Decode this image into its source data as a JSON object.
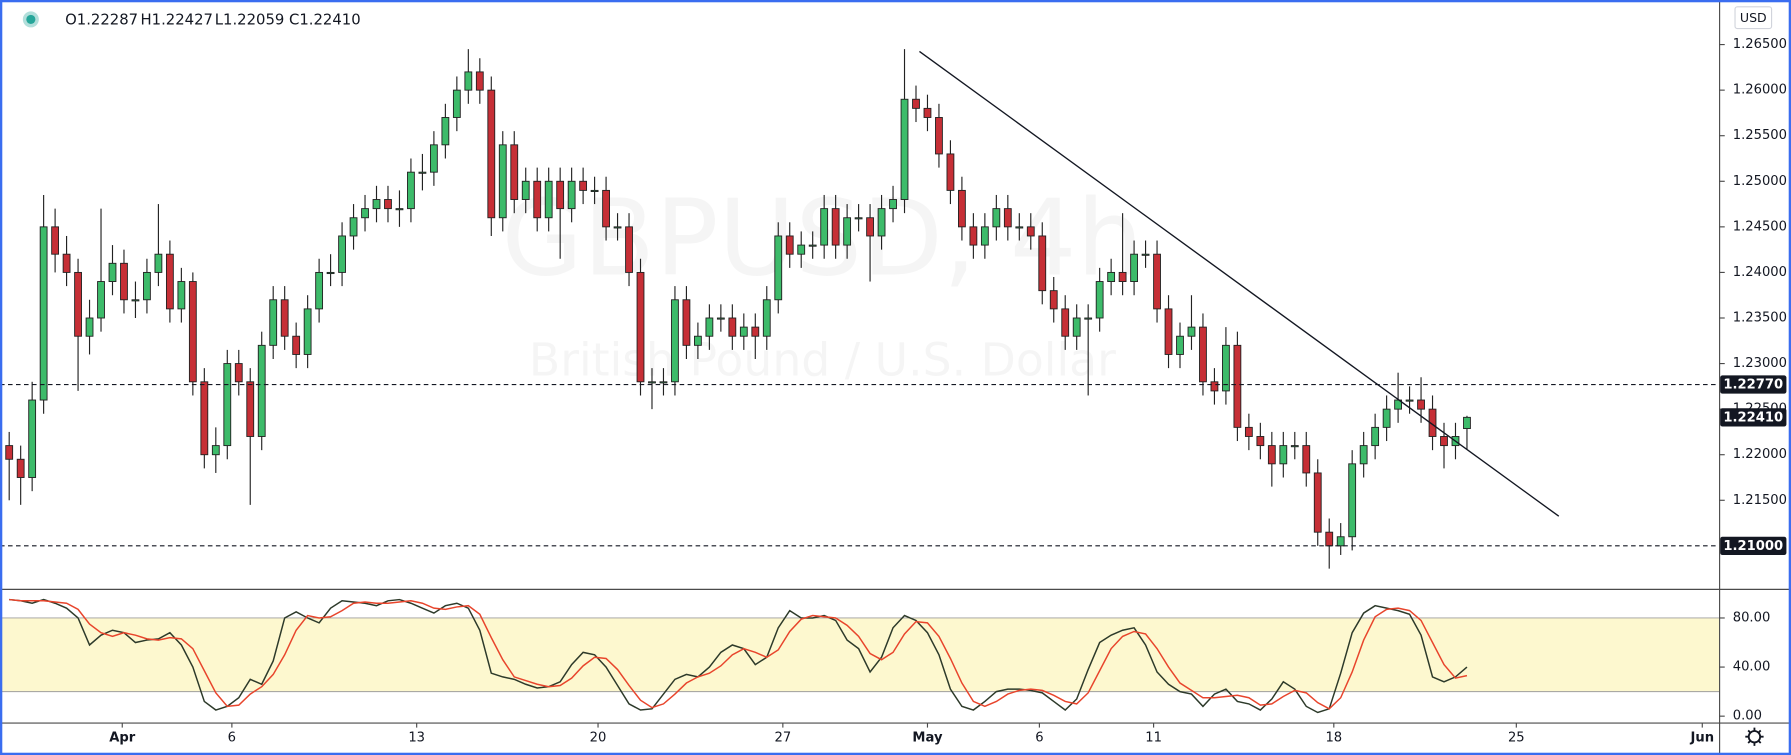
{
  "chart_data": [
    {
      "type": "candlestick",
      "header": [
        "O1.22287",
        "H1.22427",
        "L1.22059",
        "C1.22410"
      ],
      "currency": "USD",
      "watermark": [
        "GBPUSD, 4h",
        "British Pound / U.S. Dollar"
      ],
      "up_color": "#3dbb6a",
      "down_color": "#c62f36",
      "open": [
        1.221,
        1.2195,
        1.2175,
        1.226,
        1.245,
        1.242,
        1.24,
        1.233,
        1.235,
        1.239,
        1.241,
        1.237,
        1.237,
        1.24,
        1.242,
        1.236,
        1.239,
        1.228,
        1.22,
        1.221,
        1.23,
        1.228,
        1.222,
        1.232,
        1.237,
        1.233,
        1.231,
        1.236,
        1.24,
        1.24,
        1.244,
        1.246,
        1.247,
        1.248,
        1.247,
        1.247,
        1.251,
        1.251,
        1.254,
        1.257,
        1.26,
        1.262,
        1.26,
        1.246,
        1.254,
        1.248,
        1.25,
        1.246,
        1.25,
        1.247,
        1.25,
        1.249,
        1.249,
        1.245,
        1.245,
        1.24,
        1.228,
        1.228,
        1.228,
        1.237,
        1.232,
        1.233,
        1.235,
        1.235,
        1.233,
        1.234,
        1.233,
        1.237,
        1.244,
        1.242,
        1.243,
        1.243,
        1.247,
        1.243,
        1.246,
        1.246,
        1.244,
        1.247,
        1.248,
        1.259,
        1.258,
        1.257,
        1.253,
        1.249,
        1.245,
        1.243,
        1.245,
        1.247,
        1.245,
        1.245,
        1.244,
        1.238,
        1.236,
        1.233,
        1.235,
        1.235,
        1.239,
        1.24,
        1.239,
        1.242,
        1.242,
        1.236,
        1.231,
        1.233,
        1.234,
        1.228,
        1.227,
        1.232,
        1.223,
        1.222,
        1.221,
        1.219,
        1.221,
        1.221,
        1.218,
        1.2115,
        1.21,
        1.211,
        1.219,
        1.221,
        1.223,
        1.225,
        1.226,
        1.226,
        1.225,
        1.222,
        1.221,
        1.22287
      ],
      "high": [
        1.2225,
        1.221,
        1.228,
        1.2485,
        1.247,
        1.244,
        1.2415,
        1.237,
        1.247,
        1.243,
        1.2425,
        1.239,
        1.2415,
        1.2475,
        1.2435,
        1.2405,
        1.24,
        1.2295,
        1.223,
        1.2315,
        1.2315,
        1.2295,
        1.2335,
        1.2385,
        1.2385,
        1.2345,
        1.2375,
        1.2415,
        1.242,
        1.2455,
        1.2475,
        1.2485,
        1.2495,
        1.2495,
        1.249,
        1.2525,
        1.253,
        1.2555,
        1.2585,
        1.2615,
        1.2645,
        1.2635,
        1.2615,
        1.2555,
        1.2555,
        1.2515,
        1.2515,
        1.2515,
        1.2515,
        1.2515,
        1.2515,
        1.2505,
        1.2505,
        1.2465,
        1.2465,
        1.2415,
        1.2295,
        1.2295,
        1.2385,
        1.2385,
        1.2345,
        1.2365,
        1.2365,
        1.2365,
        1.2355,
        1.2355,
        1.2385,
        1.2455,
        1.2455,
        1.2445,
        1.2445,
        1.2485,
        1.2485,
        1.2475,
        1.2475,
        1.2475,
        1.2485,
        1.2495,
        1.2645,
        1.2605,
        1.2595,
        1.2585,
        1.2545,
        1.2505,
        1.2465,
        1.2465,
        1.2485,
        1.2485,
        1.2465,
        1.2465,
        1.2455,
        1.2395,
        1.2375,
        1.2365,
        1.2365,
        1.2405,
        1.2415,
        1.2465,
        1.2435,
        1.2435,
        1.2435,
        1.2375,
        1.2345,
        1.2375,
        1.2355,
        1.2295,
        1.234,
        1.2335,
        1.2245,
        1.2235,
        1.2225,
        1.2225,
        1.2225,
        1.2225,
        1.2195,
        1.213,
        1.2125,
        1.2205,
        1.2225,
        1.2245,
        1.2265,
        1.229,
        1.2275,
        1.2285,
        1.2265,
        1.2235,
        1.2235,
        1.22427
      ],
      "low": [
        1.215,
        1.2145,
        1.216,
        1.2245,
        1.24,
        1.2385,
        1.227,
        1.231,
        1.2335,
        1.2375,
        1.2355,
        1.235,
        1.2355,
        1.2385,
        1.2345,
        1.2345,
        1.2265,
        1.2185,
        1.218,
        1.2195,
        1.2265,
        1.2145,
        1.2205,
        1.2305,
        1.2315,
        1.2295,
        1.2295,
        1.2345,
        1.2385,
        1.2385,
        1.2425,
        1.2445,
        1.2455,
        1.2455,
        1.245,
        1.2455,
        1.249,
        1.2495,
        1.2525,
        1.2555,
        1.2585,
        1.2585,
        1.244,
        1.2445,
        1.2465,
        1.2465,
        1.2445,
        1.2445,
        1.2415,
        1.2455,
        1.2475,
        1.2475,
        1.2435,
        1.2435,
        1.2385,
        1.2265,
        1.225,
        1.2265,
        1.2265,
        1.2305,
        1.2305,
        1.2315,
        1.2335,
        1.2315,
        1.2315,
        1.2305,
        1.2315,
        1.2355,
        1.2405,
        1.2405,
        1.2415,
        1.2415,
        1.2415,
        1.2415,
        1.2445,
        1.239,
        1.2425,
        1.2455,
        1.2465,
        1.2565,
        1.2555,
        1.2515,
        1.2475,
        1.2435,
        1.2415,
        1.2415,
        1.2435,
        1.2435,
        1.2435,
        1.2425,
        1.2365,
        1.2345,
        1.2315,
        1.2315,
        1.2265,
        1.2335,
        1.2375,
        1.2375,
        1.2375,
        1.2405,
        1.2345,
        1.2295,
        1.2295,
        1.2315,
        1.2265,
        1.2255,
        1.2255,
        1.2215,
        1.2205,
        1.2195,
        1.2165,
        1.2175,
        1.2195,
        1.2165,
        1.21,
        1.2075,
        1.209,
        1.2095,
        1.2175,
        1.2195,
        1.2215,
        1.2235,
        1.2245,
        1.2235,
        1.2205,
        1.2185,
        1.2195,
        1.22059
      ],
      "close": [
        1.2195,
        1.2175,
        1.226,
        1.245,
        1.242,
        1.24,
        1.233,
        1.235,
        1.239,
        1.241,
        1.237,
        1.237,
        1.24,
        1.242,
        1.236,
        1.239,
        1.228,
        1.22,
        1.221,
        1.23,
        1.228,
        1.222,
        1.232,
        1.237,
        1.233,
        1.231,
        1.236,
        1.24,
        1.24,
        1.244,
        1.246,
        1.247,
        1.248,
        1.247,
        1.247,
        1.251,
        1.251,
        1.254,
        1.257,
        1.26,
        1.262,
        1.26,
        1.246,
        1.254,
        1.248,
        1.25,
        1.246,
        1.25,
        1.247,
        1.25,
        1.249,
        1.249,
        1.245,
        1.245,
        1.24,
        1.228,
        1.228,
        1.228,
        1.237,
        1.232,
        1.233,
        1.235,
        1.235,
        1.233,
        1.234,
        1.233,
        1.237,
        1.244,
        1.242,
        1.243,
        1.243,
        1.247,
        1.243,
        1.246,
        1.246,
        1.244,
        1.247,
        1.248,
        1.259,
        1.258,
        1.257,
        1.253,
        1.249,
        1.245,
        1.243,
        1.245,
        1.247,
        1.245,
        1.245,
        1.244,
        1.238,
        1.236,
        1.233,
        1.235,
        1.235,
        1.239,
        1.24,
        1.239,
        1.242,
        1.242,
        1.236,
        1.231,
        1.233,
        1.234,
        1.228,
        1.227,
        1.232,
        1.223,
        1.222,
        1.221,
        1.219,
        1.221,
        1.221,
        1.218,
        1.2115,
        1.21,
        1.211,
        1.219,
        1.221,
        1.223,
        1.225,
        1.226,
        1.226,
        1.225,
        1.222,
        1.221,
        1.222,
        1.2241
      ],
      "xlim": [
        -0.8,
        148.96
      ],
      "xticks": [
        {
          "value": 9.85,
          "label": "Apr"
        },
        {
          "value": 19.4,
          "label": "6"
        },
        {
          "value": 35.5,
          "label": "13"
        },
        {
          "value": 51.3,
          "label": "20"
        },
        {
          "value": 67.4,
          "label": "27"
        },
        {
          "value": 80.0,
          "label": "May"
        },
        {
          "value": 89.75,
          "label": "6"
        },
        {
          "value": 99.7,
          "label": "11"
        },
        {
          "value": 115.4,
          "label": "18"
        },
        {
          "value": 131.3,
          "label": "25"
        },
        {
          "value": 147.5,
          "label": "Jun"
        }
      ],
      "ylim": [
        1.20535,
        1.26989
      ],
      "yticks": [
        {
          "value": 1.215,
          "label": "1.21500"
        },
        {
          "value": 1.22,
          "label": "1.22000"
        },
        {
          "value": 1.225,
          "label": "1.22500"
        },
        {
          "value": 1.23,
          "label": "1.23000"
        },
        {
          "value": 1.235,
          "label": "1.23500"
        },
        {
          "value": 1.24,
          "label": "1.24000"
        },
        {
          "value": 1.245,
          "label": "1.24500"
        },
        {
          "value": 1.25,
          "label": "1.25000"
        },
        {
          "value": 1.255,
          "label": "1.25500"
        },
        {
          "value": 1.26,
          "label": "1.26000"
        },
        {
          "value": 1.265,
          "label": "1.26500"
        }
      ],
      "hlines": [
        {
          "value": 1.2277,
          "label": "1.22770"
        },
        {
          "value": 1.21,
          "label": "1.21000"
        }
      ],
      "last_price": {
        "value": 1.2241,
        "label": "1.22410"
      },
      "trendline": {
        "x": [
          79.3,
          135.0
        ],
        "y": [
          1.26425,
          1.21325
        ]
      }
    },
    {
      "type": "line",
      "ylim": [
        -4.65,
        103.3
      ],
      "yticks": [
        {
          "value": 0,
          "label": "0.00"
        },
        {
          "value": 40,
          "label": "40.00"
        },
        {
          "value": 80,
          "label": "80.00"
        }
      ],
      "band": [
        20,
        80
      ],
      "band_color": "#fdf8cf",
      "series": [
        {
          "color": "#2d3a2a",
          "values": [
            95,
            94,
            92,
            95,
            92,
            88,
            80,
            58,
            66,
            70,
            68,
            60,
            62,
            63,
            68,
            58,
            40,
            12,
            5,
            8,
            15,
            30,
            26,
            45,
            80,
            85,
            80,
            76,
            88,
            94,
            93,
            92,
            90,
            94,
            95,
            92,
            88,
            84,
            90,
            92,
            88,
            70,
            35,
            32,
            30,
            26,
            23,
            24,
            28,
            42,
            52,
            50,
            40,
            25,
            10,
            5,
            6,
            18,
            30,
            34,
            32,
            40,
            52,
            58,
            55,
            42,
            48,
            72,
            86,
            80,
            80,
            82,
            78,
            62,
            55,
            36,
            48,
            72,
            82,
            78,
            68,
            50,
            22,
            8,
            5,
            12,
            20,
            22,
            22,
            21,
            19,
            12,
            5,
            14,
            38,
            60,
            66,
            70,
            72,
            58,
            36,
            26,
            20,
            18,
            8,
            18,
            22,
            12,
            10,
            5,
            14,
            28,
            22,
            8,
            3,
            6,
            35,
            68,
            84,
            90,
            88,
            86,
            83,
            66,
            32,
            28,
            32,
            40
          ]
        },
        {
          "color": "#e8452c",
          "values": [
            95,
            94,
            94,
            94,
            93,
            92,
            87,
            75,
            68,
            65,
            68,
            66,
            63,
            62,
            64,
            63,
            55,
            37,
            19,
            8,
            9,
            18,
            24,
            34,
            50,
            70,
            82,
            80,
            81,
            86,
            92,
            93,
            92,
            92,
            93,
            94,
            92,
            88,
            87,
            89,
            90,
            83,
            64,
            46,
            32,
            29,
            26,
            24,
            25,
            31,
            41,
            48,
            47,
            38,
            25,
            13,
            7,
            10,
            18,
            27,
            32,
            35,
            41,
            50,
            55,
            52,
            48,
            54,
            69,
            79,
            82,
            81,
            80,
            74,
            65,
            51,
            46,
            52,
            67,
            77,
            76,
            65,
            47,
            27,
            12,
            8,
            12,
            18,
            21,
            22,
            21,
            17,
            12,
            10,
            19,
            37,
            55,
            65,
            69,
            67,
            55,
            40,
            27,
            21,
            15,
            15,
            16,
            17,
            15,
            9,
            10,
            16,
            21,
            19,
            11,
            6,
            15,
            36,
            62,
            81,
            87,
            88,
            86,
            78,
            60,
            42,
            31,
            33
          ]
        }
      ]
    }
  ]
}
